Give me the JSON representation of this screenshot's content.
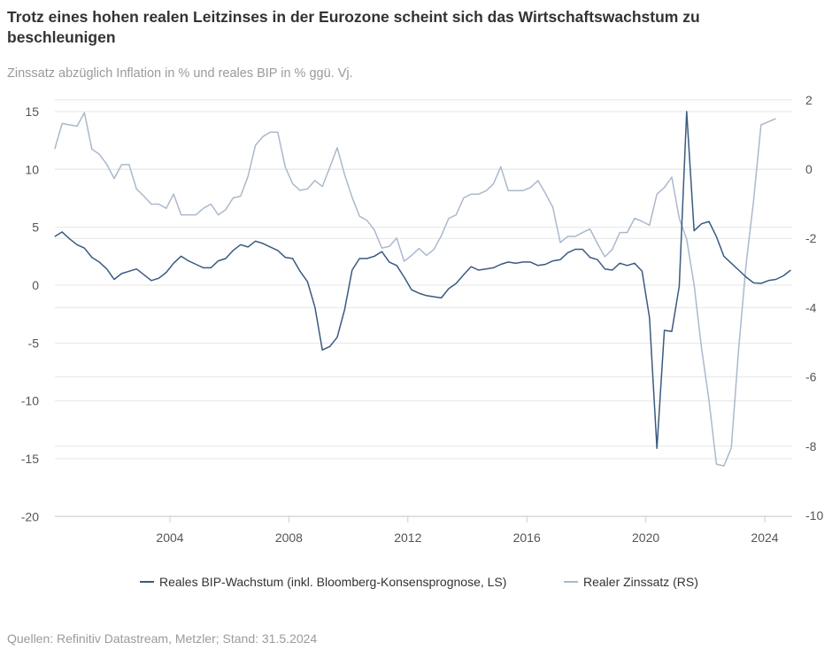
{
  "title": "Trotz eines hohen realen Leitzinses in der Eurozone scheint sich das Wirtschaftswachstum zu beschleunigen",
  "subtitle": "Zinssatz abzüglich Inflation in % und reales BIP in % ggü. Vj.",
  "source": "Quellen: Refinitiv Datastream, Metzler; Stand: 31.5.2024",
  "chart_data": {
    "type": "line",
    "title": "Trotz eines hohen realen Leitzinses in der Eurozone scheint sich das Wirtschaftswachstum zu beschleunigen",
    "x_start": 2000.125,
    "x_step": 0.25,
    "xlim": [
      2000.125,
      2025
    ],
    "x_ticks": [
      "2004",
      "2008",
      "2012",
      "2016",
      "2020",
      "2024"
    ],
    "y_left": {
      "ylim": [
        -20,
        15
      ],
      "ticks": [
        "15",
        "10",
        "5",
        "0",
        "-5",
        "-10",
        "-15",
        "-20"
      ]
    },
    "y_right": {
      "ylim": [
        -10,
        2
      ],
      "ticks": [
        "2",
        "0",
        "-2",
        "-4",
        "-6",
        "-8",
        "-10"
      ]
    },
    "grid": true,
    "legend_position": "bottom",
    "series": [
      {
        "name": "Reales BIP-Wachstum (inkl. Bloomberg-Konsensprognose, LS)",
        "axis": "left",
        "color": "#3a5a80",
        "values": [
          4.2,
          4.6,
          4.0,
          3.5,
          3.2,
          2.4,
          2.0,
          1.4,
          0.5,
          1.0,
          1.2,
          1.4,
          0.9,
          0.4,
          0.6,
          1.1,
          1.9,
          2.5,
          2.1,
          1.8,
          1.5,
          1.5,
          2.1,
          2.3,
          3.0,
          3.5,
          3.3,
          3.8,
          3.6,
          3.3,
          3.0,
          2.4,
          2.3,
          1.2,
          0.3,
          -1.9,
          -5.6,
          -5.3,
          -4.5,
          -2.1,
          1.3,
          2.3,
          2.3,
          2.5,
          2.9,
          2.0,
          1.7,
          0.7,
          -0.4,
          -0.7,
          -0.9,
          -1.0,
          -1.1,
          -0.3,
          0.15,
          0.9,
          1.6,
          1.3,
          1.4,
          1.5,
          1.8,
          2.0,
          1.9,
          2.0,
          2.0,
          1.7,
          1.8,
          2.1,
          2.2,
          2.8,
          3.1,
          3.1,
          2.4,
          2.2,
          1.4,
          1.3,
          1.9,
          1.7,
          1.9,
          1.2,
          -2.8,
          -14.1,
          -3.9,
          -4.0,
          -0.1,
          15.0,
          4.7,
          5.3,
          5.5,
          4.2,
          2.5,
          1.9,
          1.3,
          0.7,
          0.2,
          0.15,
          0.4,
          0.5,
          0.8,
          1.3
        ]
      },
      {
        "name": "Realer Zinssatz (RS)",
        "axis": "right",
        "color": "#aab9cc",
        "values": [
          0.58,
          1.32,
          1.28,
          1.24,
          1.63,
          0.58,
          0.43,
          0.14,
          -0.27,
          0.13,
          0.13,
          -0.57,
          -0.78,
          -1.01,
          -1.01,
          -1.13,
          -0.72,
          -1.32,
          -1.32,
          -1.32,
          -1.13,
          -1.01,
          -1.32,
          -1.17,
          -0.83,
          -0.78,
          -0.21,
          0.69,
          0.94,
          1.07,
          1.07,
          0.07,
          -0.42,
          -0.61,
          -0.57,
          -0.33,
          -0.5,
          0.05,
          0.62,
          -0.16,
          -0.81,
          -1.36,
          -1.48,
          -1.76,
          -2.28,
          -2.23,
          -1.99,
          -2.66,
          -2.49,
          -2.29,
          -2.49,
          -2.32,
          -1.92,
          -1.42,
          -1.32,
          -0.83,
          -0.72,
          -0.72,
          -0.63,
          -0.43,
          0.07,
          -0.62,
          -0.62,
          -0.62,
          -0.53,
          -0.33,
          -0.7,
          -1.1,
          -2.12,
          -1.94,
          -1.94,
          -1.83,
          -1.73,
          -2.15,
          -2.53,
          -2.32,
          -1.83,
          -1.83,
          -1.42,
          -1.51,
          -1.62,
          -0.72,
          -0.53,
          -0.23,
          -1.42,
          -2.02,
          -3.34,
          -5.17,
          -6.67,
          -8.52,
          -8.57,
          -8.06,
          -5.17,
          -2.74,
          -0.91,
          1.28,
          1.37,
          1.46
        ]
      }
    ]
  }
}
